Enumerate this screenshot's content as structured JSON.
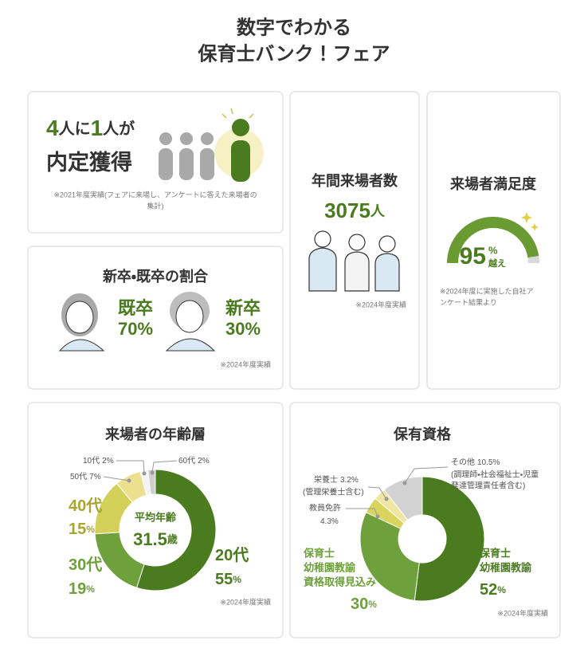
{
  "header": {
    "title": [
      "数字でわかる",
      "保育士バンク！フェア"
    ]
  },
  "offer": {
    "headline": [
      "4",
      "人に",
      "1",
      "人が"
    ],
    "result": "内定獲得",
    "note": [
      "※2021年度実績(フェアに来場し、アンケートに答えた来場者の",
      "集計)"
    ]
  },
  "visitors": {
    "title": "年間来場者数",
    "value": "3075",
    "unit": "人",
    "note": "※2024年度実績"
  },
  "satisfaction": {
    "title": "来場者満足度",
    "value": 95,
    "unit": "%",
    "suffix": "越え",
    "note": [
      "※2024年度に実施した自社ア",
      "ンケート結果より"
    ]
  },
  "ratio": {
    "title": "新卒・既卒の割合",
    "items": [
      {
        "label": "既卒",
        "value": "70%"
      },
      {
        "label": "新卒",
        "value": "30%"
      }
    ],
    "note": "※2024年度実績"
  },
  "age": {
    "title": "来場者の年齢層",
    "center_label": "平均年齢",
    "center_value": "31.5",
    "center_unit": "歳",
    "unit": "%",
    "segments": [
      {
        "name": "20代",
        "value": 55,
        "color": "#4a7c1f"
      },
      {
        "name": "30代",
        "value": 19,
        "color": "#6ea03c"
      },
      {
        "name": "40代",
        "value": 15,
        "color": "#d3d05a"
      },
      {
        "name": "50代",
        "value": 7,
        "color": "#ece08e"
      },
      {
        "name": "10代",
        "value": 2,
        "color": "#f4f4f4"
      },
      {
        "name": "60代",
        "value": 2,
        "color": "#cfcfcf"
      }
    ],
    "note": "※2024年度実績"
  },
  "qualifications": {
    "title": "保有資格",
    "unit": "%",
    "segments": [
      {
        "name": [
          "保育士",
          "幼稚園教諭"
        ],
        "value": 52,
        "color": "#4a7c1f"
      },
      {
        "name": [
          "保育士",
          "幼稚園教諭",
          "資格取得見込み"
        ],
        "value": 30,
        "color": "#6ea03c"
      },
      {
        "name": [
          "教員免許"
        ],
        "value": 4.3,
        "color": "#d8d45c"
      },
      {
        "name": [
          "栄養士"
        ],
        "detail": [
          "(管理栄養士含む)"
        ],
        "value": 3.2,
        "color": "#efe6a4"
      },
      {
        "name": [
          "その他"
        ],
        "detail": [
          "(調理師・社会福祉士・児童",
          "発達管理責任者含む)"
        ],
        "value": 10.5,
        "color": "#d2d2d2"
      }
    ],
    "note": "※2024年度実績"
  }
}
